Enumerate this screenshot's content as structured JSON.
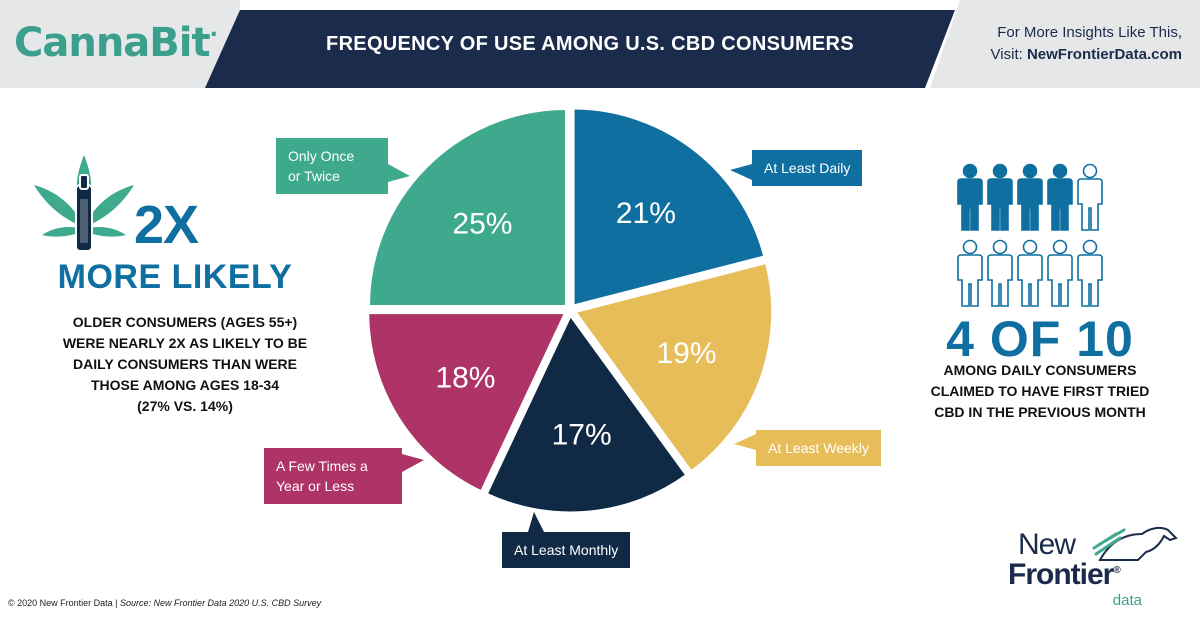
{
  "header": {
    "brand": "CannaBit",
    "title": "FREQUENCY OF USE AMONG U.S. CBD CONSUMERS",
    "promo_line1": "For More Insights Like This,",
    "promo_visit": "Visit:",
    "promo_url": "NewFrontierData.com"
  },
  "left": {
    "big": "2X",
    "headline": "MORE LIKELY",
    "desc_lines": [
      "OLDER CONSUMERS (AGES 55+)",
      "WERE NEARLY 2X AS LIKELY TO BE",
      "DAILY CONSUMERS THAN WERE",
      "THOSE AMONG AGES 18-34",
      "(27% VS. 14%)"
    ]
  },
  "right": {
    "big": "4 OF 10",
    "desc_lines": [
      "AMONG DAILY CONSUMERS",
      "CLAIMED TO HAVE FIRST TRIED",
      "CBD IN THE PREVIOUS MONTH"
    ],
    "pictogram_filled": 4,
    "pictogram_total": 10
  },
  "chart_data": {
    "type": "pie",
    "title": "FREQUENCY OF USE AMONG U.S. CBD CONSUMERS",
    "slices": [
      {
        "label": "At Least Daily",
        "value": 21,
        "display": "21%",
        "color": "#0e6fa0"
      },
      {
        "label": "At Least Weekly",
        "value": 19,
        "display": "19%",
        "color": "#e7bd5a"
      },
      {
        "label": "At Least Monthly",
        "value": 17,
        "display": "17%",
        "color": "#102a45"
      },
      {
        "label": "A Few Times a Year or Less",
        "value": 18,
        "display": "18%",
        "color": "#ae3366"
      },
      {
        "label": "Only Once or Twice",
        "value": 25,
        "display": "25%",
        "color": "#3fa98d"
      }
    ]
  },
  "callouts": {
    "daily": "At Least Daily",
    "weekly": "At Least Weekly",
    "monthly": "At Least Monthly",
    "yearly_line1": "A Few Times a",
    "yearly_line2": "Year or Less",
    "once_line1": "Only Once",
    "once_line2": "or Twice"
  },
  "footer": {
    "copyright": "© 2020  New Frontier Data | ",
    "source": "Source: New Frontier Data 2020 U.S. CBD Survey"
  },
  "logo": {
    "line1": "New",
    "line2": "Frontier",
    "line3": "data"
  },
  "colors": {
    "navy": "#1b2b4b",
    "blue": "#0e6fa0",
    "teal": "#3fa98d",
    "gold": "#e7bd5a",
    "magenta": "#ae3366",
    "dark_navy": "#102a45"
  }
}
